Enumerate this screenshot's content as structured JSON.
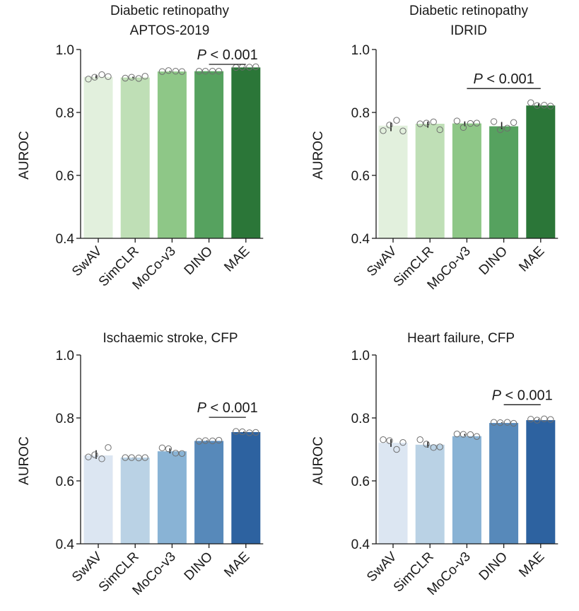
{
  "chart_data": [
    {
      "type": "bar",
      "title_line1": "Diabetic retinopathy",
      "title_line2": "APTOS-2019",
      "ylabel": "AUROC",
      "ylim": [
        0.4,
        1.0
      ],
      "yticks": [
        "0.4",
        "0.6",
        "0.8",
        "1.0"
      ],
      "categories": [
        "SwAV",
        "SimCLR",
        "MoCo-v3",
        "DINO",
        "MAE"
      ],
      "values": [
        0.913,
        0.911,
        0.93,
        0.931,
        0.943
      ],
      "colors": [
        "#e2f0dd",
        "#bfdfb6",
        "#8ec787",
        "#56a25f",
        "#2b7638"
      ],
      "points": [
        [
          0.906,
          0.912,
          0.92,
          0.914
        ],
        [
          0.909,
          0.912,
          0.908,
          0.915
        ],
        [
          0.93,
          0.933,
          0.931,
          0.93
        ],
        [
          0.931,
          0.931,
          0.931,
          0.931
        ],
        [
          0.943,
          0.944,
          0.944,
          0.945
        ]
      ],
      "significance": {
        "label_italic": "P",
        "label_rest": " < 0.001",
        "from": 3,
        "to": 4
      }
    },
    {
      "type": "bar",
      "title_line1": "Diabetic retinopathy",
      "title_line2": "IDRID",
      "ylabel": "AUROC",
      "ylim": [
        0.4,
        1.0
      ],
      "yticks": [
        "0.4",
        "0.6",
        "0.8",
        "1.0"
      ],
      "categories": [
        "SwAV",
        "SimCLR",
        "MoCo-v3",
        "DINO",
        "MAE"
      ],
      "values": [
        0.758,
        0.764,
        0.765,
        0.756,
        0.822
      ],
      "colors": [
        "#e2f0dd",
        "#bfdfb6",
        "#8ec787",
        "#56a25f",
        "#2b7638"
      ],
      "points": [
        [
          0.742,
          0.76,
          0.775,
          0.741
        ],
        [
          0.764,
          0.766,
          0.77,
          0.745
        ],
        [
          0.773,
          0.752,
          0.765,
          0.766
        ],
        [
          0.771,
          0.745,
          0.75,
          0.768
        ],
        [
          0.831,
          0.822,
          0.823,
          0.82
        ]
      ],
      "significance": {
        "label_italic": "P",
        "label_rest": " < 0.001",
        "from": 2,
        "to": 4
      }
    },
    {
      "type": "bar",
      "title_line1": "Ischaemic stroke, CFP",
      "title_line2": "",
      "ylabel": "AUROC",
      "ylim": [
        0.4,
        1.0
      ],
      "yticks": [
        "0.4",
        "0.6",
        "0.8",
        "1.0"
      ],
      "categories": [
        "SwAV",
        "SimCLR",
        "MoCo-v3",
        "DINO",
        "MAE"
      ],
      "values": [
        0.681,
        0.674,
        0.694,
        0.727,
        0.755
      ],
      "colors": [
        "#dce6f2",
        "#bad2e5",
        "#89b3d5",
        "#5789ba",
        "#2d62a0"
      ],
      "points": [
        [
          0.676,
          0.683,
          0.67,
          0.706
        ],
        [
          0.674,
          0.674,
          0.673,
          0.674
        ],
        [
          0.705,
          0.702,
          0.688,
          0.687
        ],
        [
          0.726,
          0.728,
          0.727,
          0.729
        ],
        [
          0.757,
          0.756,
          0.753,
          0.754
        ]
      ],
      "significance": {
        "label_italic": "P",
        "label_rest": " < 0.001",
        "from": 3,
        "to": 4
      }
    },
    {
      "type": "bar",
      "title_line1": "Heart failure, CFP",
      "title_line2": "",
      "ylabel": "AUROC",
      "ylim": [
        0.4,
        1.0
      ],
      "yticks": [
        "0.4",
        "0.6",
        "0.8",
        "1.0"
      ],
      "categories": [
        "SwAV",
        "SimCLR",
        "MoCo-v3",
        "DINO",
        "MAE"
      ],
      "values": [
        0.721,
        0.715,
        0.742,
        0.784,
        0.793
      ],
      "colors": [
        "#dce6f2",
        "#bad2e5",
        "#89b3d5",
        "#5789ba",
        "#2d62a0"
      ],
      "points": [
        [
          0.731,
          0.728,
          0.7,
          0.722
        ],
        [
          0.731,
          0.717,
          0.706,
          0.708
        ],
        [
          0.749,
          0.748,
          0.747,
          0.741
        ],
        [
          0.786,
          0.785,
          0.786,
          0.783
        ],
        [
          0.796,
          0.793,
          0.797,
          0.795
        ]
      ],
      "significance": {
        "label_italic": "P",
        "label_rest": " < 0.001",
        "from": 3,
        "to": 4
      }
    }
  ]
}
